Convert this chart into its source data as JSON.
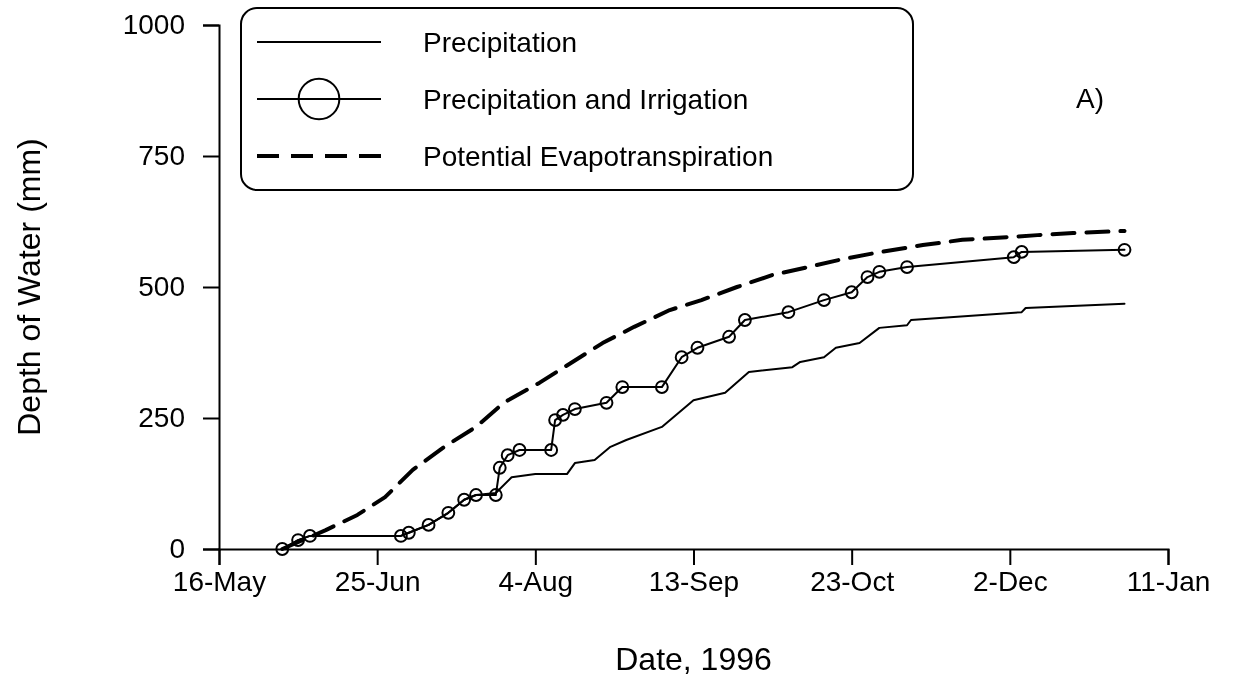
{
  "chart_data": {
    "type": "line",
    "xlabel": "Date, 1996",
    "ylabel": "Depth of Water (mm)",
    "annotations": [
      "A)"
    ],
    "xlim": [
      "1996-05-16",
      "1997-01-11"
    ],
    "xticks": [
      {
        "value": "1996-05-16",
        "label": "16-May"
      },
      {
        "value": "1996-06-25",
        "label": "25-Jun"
      },
      {
        "value": "1996-08-04",
        "label": "4-Aug"
      },
      {
        "value": "1996-09-13",
        "label": "13-Sep"
      },
      {
        "value": "1996-10-23",
        "label": "23-Oct"
      },
      {
        "value": "1996-12-02",
        "label": "2-Dec"
      },
      {
        "value": "1997-01-11",
        "label": "11-Jan"
      }
    ],
    "ylim": [
      0,
      1000
    ],
    "yticks": [
      0,
      250,
      500,
      750,
      1000
    ],
    "legend": "top left",
    "series": [
      {
        "name": "Precipitation",
        "color": "#000000",
        "line_style": "solid",
        "marker": "none",
        "x": [
          "1996-06-01",
          "1996-06-05",
          "1996-06-08",
          "1996-07-01",
          "1996-07-03",
          "1996-07-08",
          "1996-07-13",
          "1996-07-17",
          "1996-07-20",
          "1996-07-25",
          "1996-07-29",
          "1996-08-04",
          "1996-08-12",
          "1996-08-14",
          "1996-08-19",
          "1996-08-23",
          "1996-08-27",
          "1996-09-05",
          "1996-09-13",
          "1996-09-21",
          "1996-09-27",
          "1996-10-08",
          "1996-10-10",
          "1996-10-16",
          "1996-10-19",
          "1996-10-25",
          "1996-10-30",
          "1996-11-06",
          "1996-11-07",
          "1996-12-05",
          "1996-12-06",
          "1996-12-31"
        ],
        "values": [
          0,
          17,
          25,
          25,
          31,
          46,
          69,
          94,
          103,
          107,
          137,
          143,
          143,
          164,
          170,
          195,
          208,
          233,
          284,
          298,
          338,
          347,
          357,
          366,
          384,
          393,
          422,
          427,
          437,
          452,
          460,
          468
        ]
      },
      {
        "name": "Precipitation and Irrigation",
        "color": "#000000",
        "line_style": "solid",
        "marker": "circle",
        "x": [
          "1996-06-01",
          "1996-06-05",
          "1996-06-08",
          "1996-07-01",
          "1996-07-03",
          "1996-07-08",
          "1996-07-13",
          "1996-07-17",
          "1996-07-20",
          "1996-07-25",
          "1996-07-26",
          "1996-07-28",
          "1996-07-31",
          "1996-08-08",
          "1996-08-09",
          "1996-08-11",
          "1996-08-14",
          "1996-08-22",
          "1996-08-26",
          "1996-09-05",
          "1996-09-10",
          "1996-09-14",
          "1996-09-22",
          "1996-09-26",
          "1996-10-07",
          "1996-10-16",
          "1996-10-23",
          "1996-10-27",
          "1996-10-30",
          "1996-11-06",
          "1996-12-03",
          "1996-12-05",
          "1996-12-31"
        ],
        "values": [
          0,
          17,
          25,
          25,
          31,
          46,
          69,
          94,
          103,
          103,
          155,
          179,
          189,
          189,
          246,
          256,
          267,
          279,
          309,
          309,
          366,
          384,
          405,
          437,
          452,
          475,
          490,
          519,
          529,
          538,
          557,
          567,
          571
        ]
      },
      {
        "name": "Potential Evapotranspiration",
        "color": "#000000",
        "line_style": "dashed",
        "marker": "none",
        "x": [
          "1996-06-01",
          "1996-06-12",
          "1996-06-20",
          "1996-06-27",
          "1996-07-04",
          "1996-07-12",
          "1996-07-20",
          "1996-07-27",
          "1996-08-05",
          "1996-08-13",
          "1996-08-21",
          "1996-08-29",
          "1996-09-07",
          "1996-09-15",
          "1996-09-24",
          "1996-10-03",
          "1996-10-12",
          "1996-10-20",
          "1996-10-29",
          "1996-11-10",
          "1996-11-20",
          "1996-11-29",
          "1996-12-09",
          "1996-12-18",
          "1996-12-31"
        ],
        "values": [
          0,
          36,
          65,
          99,
          151,
          195,
          233,
          279,
          317,
          355,
          393,
          424,
          456,
          475,
          500,
          523,
          538,
          552,
          565,
          580,
          590,
          594,
          599,
          603,
          607
        ]
      }
    ]
  }
}
